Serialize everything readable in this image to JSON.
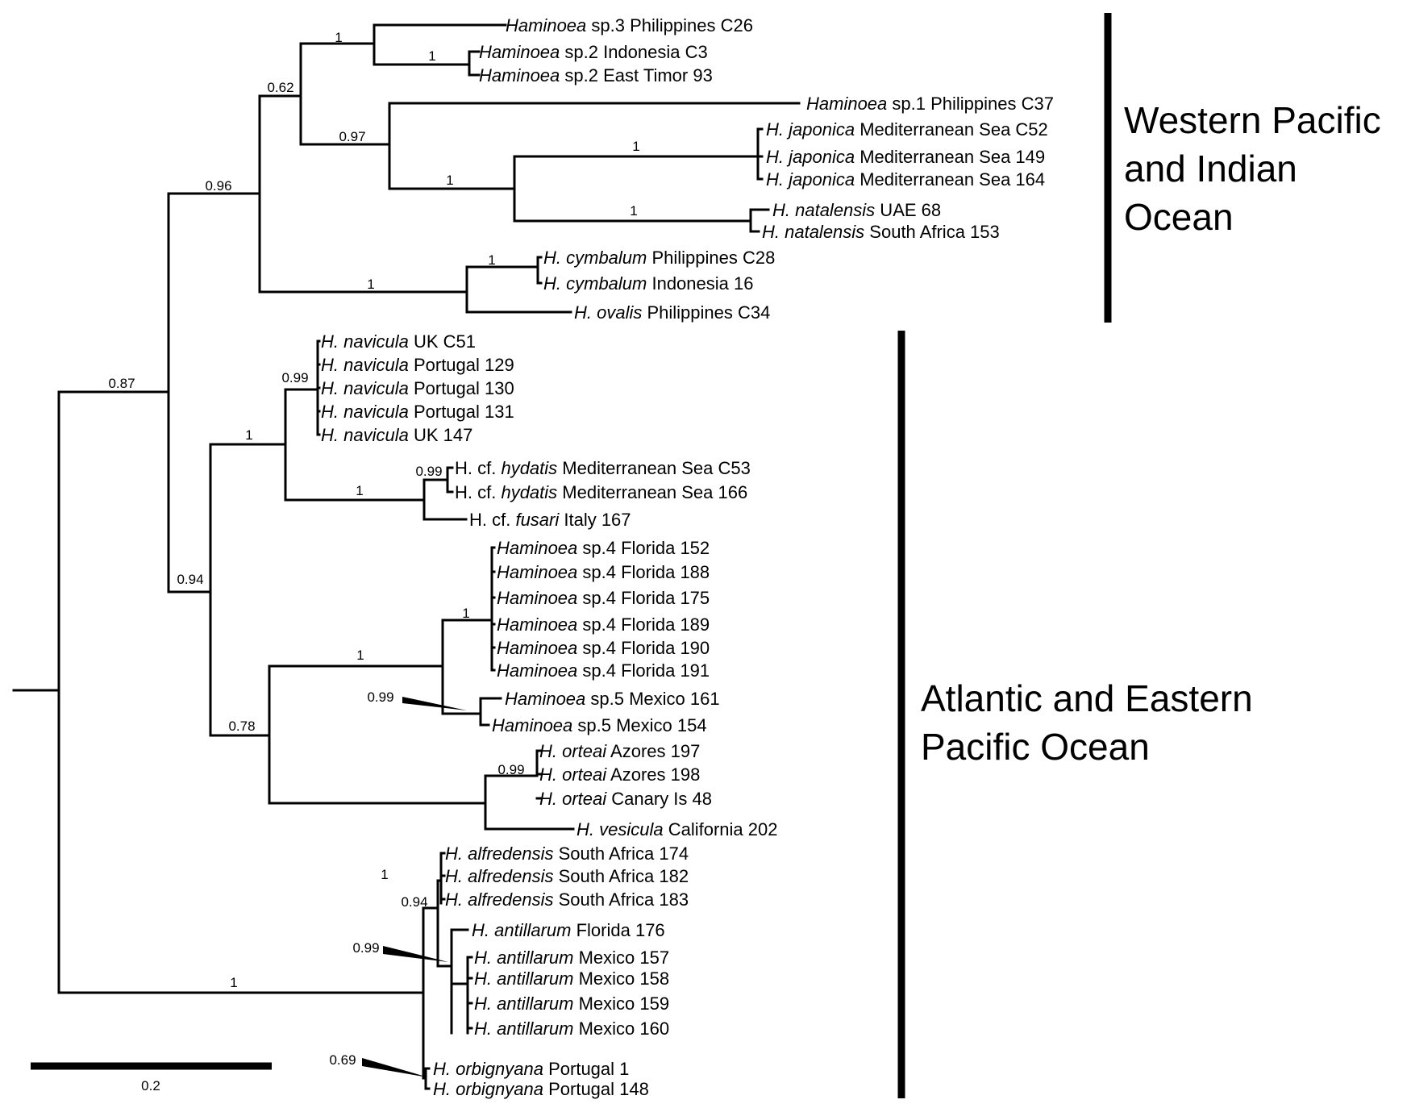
{
  "taxa": [
    {
      "id": "t1",
      "genus": "Haminoea",
      "rest": " sp.3 Philippines C26"
    },
    {
      "id": "t2",
      "genus": "Haminoea",
      "rest": " sp.2 Indonesia C3"
    },
    {
      "id": "t3",
      "genus": "Haminoea",
      "rest": " sp.2 East Timor 93"
    },
    {
      "id": "t4",
      "genus": "Haminoea",
      "rest": " sp.1 Philippines C37"
    },
    {
      "id": "t5",
      "genus": "H. japonica",
      "rest": " Mediterranean Sea C52"
    },
    {
      "id": "t6",
      "genus": "H. japonica",
      "rest": " Mediterranean Sea 149"
    },
    {
      "id": "t7",
      "genus": "H. japonica",
      "rest": " Mediterranean Sea 164"
    },
    {
      "id": "t8",
      "genus": "H. natalensis",
      "rest": " UAE 68"
    },
    {
      "id": "t9",
      "genus": "H. natalensis",
      "rest": " South Africa 153"
    },
    {
      "id": "t10",
      "genus": "H. cymbalum",
      "rest": " Philippines C28"
    },
    {
      "id": "t11",
      "genus": "H. cymbalum",
      "rest": " Indonesia 16"
    },
    {
      "id": "t12",
      "genus": "H. ovalis",
      "rest": " Philippines C34"
    },
    {
      "id": "t13",
      "genus": "H. navicula",
      "rest": " UK C51"
    },
    {
      "id": "t14",
      "genus": "H. navicula",
      "rest": " Portugal 129"
    },
    {
      "id": "t15",
      "genus": "H. navicula",
      "rest": " Portugal 130"
    },
    {
      "id": "t16",
      "genus": "H. navicula",
      "rest": " Portugal 131"
    },
    {
      "id": "t17",
      "genus": "H. navicula",
      "rest": " UK 147"
    },
    {
      "id": "t18",
      "pre": "H. cf. ",
      "genus": "hydatis",
      "rest": " Mediterranean Sea C53"
    },
    {
      "id": "t19",
      "pre": "H. cf. ",
      "genus": "hydatis",
      "rest": " Mediterranean Sea 166"
    },
    {
      "id": "t20",
      "pre": "H. cf. ",
      "genus": "fusari",
      "rest": " Italy 167"
    },
    {
      "id": "t21",
      "genus": "Haminoea",
      "rest": " sp.4 Florida 152"
    },
    {
      "id": "t22",
      "genus": "Haminoea",
      "rest": " sp.4 Florida 188"
    },
    {
      "id": "t23",
      "genus": "Haminoea",
      "rest": " sp.4 Florida 175"
    },
    {
      "id": "t24",
      "genus": "Haminoea",
      "rest": " sp.4 Florida 189"
    },
    {
      "id": "t25",
      "genus": "Haminoea",
      "rest": " sp.4 Florida 190"
    },
    {
      "id": "t26",
      "genus": "Haminoea",
      "rest": " sp.4 Florida 191"
    },
    {
      "id": "t27",
      "genus": "Haminoea",
      "rest": " sp.5 Mexico 161"
    },
    {
      "id": "t28",
      "genus": "Haminoea",
      "rest": " sp.5 Mexico 154"
    },
    {
      "id": "t29",
      "genus": "H. orteai",
      "rest": " Azores 197"
    },
    {
      "id": "t30",
      "genus": "H. orteai",
      "rest": " Azores 198"
    },
    {
      "id": "t31",
      "genus": "H. orteai",
      "rest": " Canary Is 48"
    },
    {
      "id": "t32",
      "genus": "H. vesicula",
      "rest": " California 202"
    },
    {
      "id": "t33",
      "genus": "H. alfredensis",
      "rest": " South Africa 174"
    },
    {
      "id": "t34",
      "genus": "H. alfredensis",
      "rest": " South Africa 182"
    },
    {
      "id": "t35",
      "genus": "H. alfredensis",
      "rest": " South Africa 183"
    },
    {
      "id": "t36",
      "genus": "H. antillarum",
      "rest": " Florida 176"
    },
    {
      "id": "t37",
      "genus": "H. antillarum",
      "rest": " Mexico 157"
    },
    {
      "id": "t38",
      "genus": "H. antillarum",
      "rest": " Mexico 158"
    },
    {
      "id": "t39",
      "genus": "H. antillarum",
      "rest": " Mexico 159"
    },
    {
      "id": "t40",
      "genus": "H. antillarum",
      "rest": " Mexico 160"
    },
    {
      "id": "t41",
      "genus": "H. orbignyana",
      "rest": " Portugal 1"
    },
    {
      "id": "t42",
      "genus": "H. orbignyana",
      "rest": " Portugal 148"
    }
  ],
  "support_values": [
    {
      "id": "s1",
      "text": "1"
    },
    {
      "id": "s2",
      "text": "1"
    },
    {
      "id": "s3",
      "text": "0.62"
    },
    {
      "id": "s4",
      "text": "0.97"
    },
    {
      "id": "s5",
      "text": "1"
    },
    {
      "id": "s6",
      "text": "1"
    },
    {
      "id": "s7",
      "text": "1"
    },
    {
      "id": "s8",
      "text": "0.96"
    },
    {
      "id": "s9",
      "text": "1"
    },
    {
      "id": "s10",
      "text": "1"
    },
    {
      "id": "s11",
      "text": "0.87"
    },
    {
      "id": "s12",
      "text": "0.99"
    },
    {
      "id": "s13",
      "text": "1"
    },
    {
      "id": "s14",
      "text": "0.99"
    },
    {
      "id": "s15",
      "text": "1"
    },
    {
      "id": "s16",
      "text": "0.94"
    },
    {
      "id": "s17",
      "text": "1"
    },
    {
      "id": "s18",
      "text": "1"
    },
    {
      "id": "s19",
      "text": "0.99"
    },
    {
      "id": "s20",
      "text": "0.78"
    },
    {
      "id": "s21",
      "text": "0.99"
    },
    {
      "id": "s22",
      "text": "1"
    },
    {
      "id": "s23",
      "text": "0.94"
    },
    {
      "id": "s24",
      "text": "0.99"
    },
    {
      "id": "s25",
      "text": "1"
    },
    {
      "id": "s26",
      "text": "0.69"
    }
  ],
  "regions": [
    {
      "id": "r1",
      "lines": [
        "Western Pacific",
        "and Indian",
        "Ocean"
      ]
    },
    {
      "id": "r2",
      "lines": [
        "Atlantic and Eastern",
        "Pacific Ocean"
      ]
    }
  ],
  "scale_bar": {
    "label": "0.2"
  }
}
